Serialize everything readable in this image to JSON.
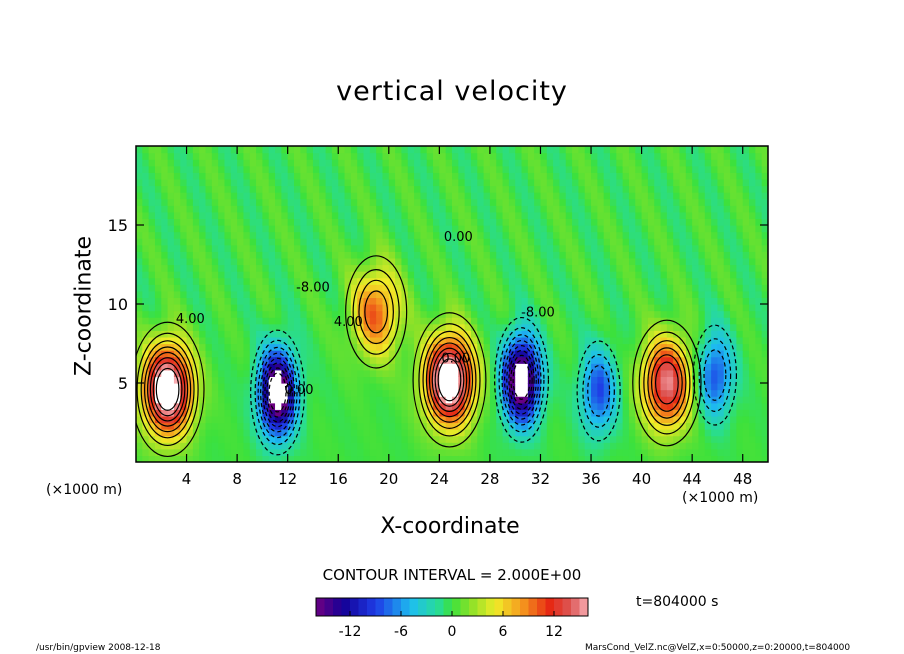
{
  "chart_data": {
    "type": "heatmap",
    "title": "vertical velocity",
    "xlabel": "X-coordinate",
    "ylabel": "Z-coordinate",
    "x_unit_label": "(×1000 m)",
    "xlim": [
      0,
      50
    ],
    "ylim": [
      0,
      20
    ],
    "x_ticks": [
      4,
      8,
      12,
      16,
      20,
      24,
      28,
      32,
      36,
      40,
      44,
      48
    ],
    "y_ticks": [
      5,
      10,
      15
    ],
    "contour_interval_label": "CONTOUR INTERVAL = 2.000E+00",
    "time_label": "t=804000 s",
    "colorbar": {
      "range": [
        -16,
        16
      ],
      "ticks": [
        -12,
        -6,
        0,
        6,
        12
      ]
    },
    "contour_labels": [
      {
        "text": "4.00",
        "x": 4.3,
        "z": 8.8
      },
      {
        "text": "4.00",
        "x": 16.8,
        "z": 8.6
      },
      {
        "text": "0.00",
        "x": 12.9,
        "z": 4.3
      },
      {
        "text": "-8.00",
        "x": 14,
        "z": 10.8
      },
      {
        "text": "-8.00",
        "x": 31.8,
        "z": 9.2
      },
      {
        "text": "0.00",
        "x": 25.3,
        "z": 6.3
      },
      {
        "text": "0.00",
        "x": 25.5,
        "z": 14
      }
    ],
    "features": [
      {
        "sign": "up",
        "x": 2.5,
        "z": 4.6,
        "peak": 16
      },
      {
        "sign": "down",
        "x": 11.2,
        "z": 4.4,
        "peak": -16
      },
      {
        "sign": "up",
        "x": 19,
        "z": 9.5,
        "peak": 8
      },
      {
        "sign": "up",
        "x": 24.8,
        "z": 5.2,
        "peak": 16
      },
      {
        "sign": "down",
        "x": 30.5,
        "z": 5.2,
        "peak": -16
      },
      {
        "sign": "down",
        "x": 36.6,
        "z": 4.5,
        "peak": -7
      },
      {
        "sign": "up",
        "x": 42,
        "z": 5,
        "peak": 12
      },
      {
        "sign": "down",
        "x": 45.8,
        "z": 5.5,
        "peak": -7
      }
    ]
  },
  "footer": {
    "left": "/usr/bin/gpview   2008-12-18",
    "right": "MarsCond_VelZ.nc@VelZ,x=0:50000,z=0:20000,t=804000"
  }
}
